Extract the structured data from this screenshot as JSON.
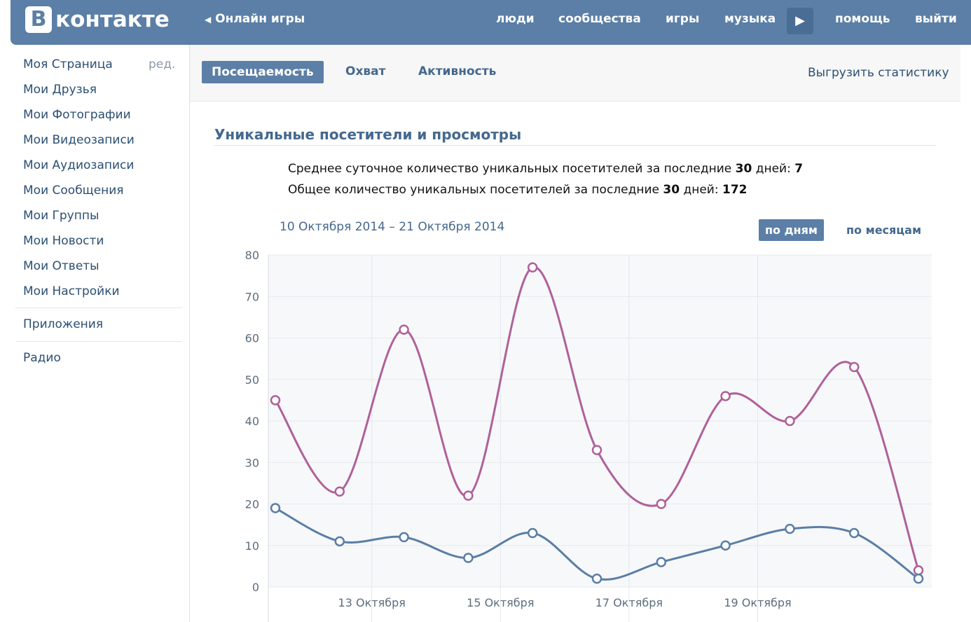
{
  "header": {
    "logo_letter": "В",
    "logo_text": "контакте",
    "back_link": "Онлайн игры",
    "nav": [
      "люди",
      "сообщества",
      "игры",
      "музыка",
      "помощь",
      "выйти"
    ]
  },
  "sidebar": {
    "edit": "ред.",
    "items": [
      "Моя Страница",
      "Мои Друзья",
      "Мои Фотографии",
      "Мои Видеозаписи",
      "Мои Аудиозаписи",
      "Мои Сообщения",
      "Мои Группы",
      "Мои Новости",
      "Мои Ответы",
      "Мои Настройки"
    ],
    "apps": "Приложения",
    "radio": "Радио"
  },
  "tabs": {
    "items": [
      "Посещаемость",
      "Охват",
      "Активность"
    ],
    "export": "Выгрузить статистику"
  },
  "section_title": "Уникальные посетители и просмотры",
  "stats": [
    {
      "text": "Среднее суточное количество уникальных посетителей за последние",
      "days": "30",
      "suffix": "дней:",
      "value": "7"
    },
    {
      "text": "Общее количество уникальных посетителей за последние",
      "days": "30",
      "suffix": "дней:",
      "value": "172"
    }
  ],
  "date_range": "10 Октября 2014 – 21 Октября 2014",
  "period_buttons": [
    "по дням",
    "по месяцам"
  ],
  "chart_data": {
    "type": "line",
    "categories": [
      null,
      null,
      "13 Октября",
      null,
      "15 Октября",
      null,
      "17 Октября",
      null,
      "19 Октября",
      null,
      null
    ],
    "series": [
      {
        "color": "#b0609a",
        "values": [
          45,
          23,
          62,
          22,
          77,
          33,
          20,
          46,
          40,
          53,
          4
        ]
      },
      {
        "color": "#5a7ea5",
        "values": [
          19,
          11,
          12,
          7,
          13,
          2,
          6,
          10,
          14,
          13,
          2
        ]
      }
    ],
    "ylim": [
      0,
      80
    ],
    "yticks": [
      0,
      10,
      20,
      30,
      40,
      50,
      60,
      70,
      80
    ],
    "grid": true
  }
}
